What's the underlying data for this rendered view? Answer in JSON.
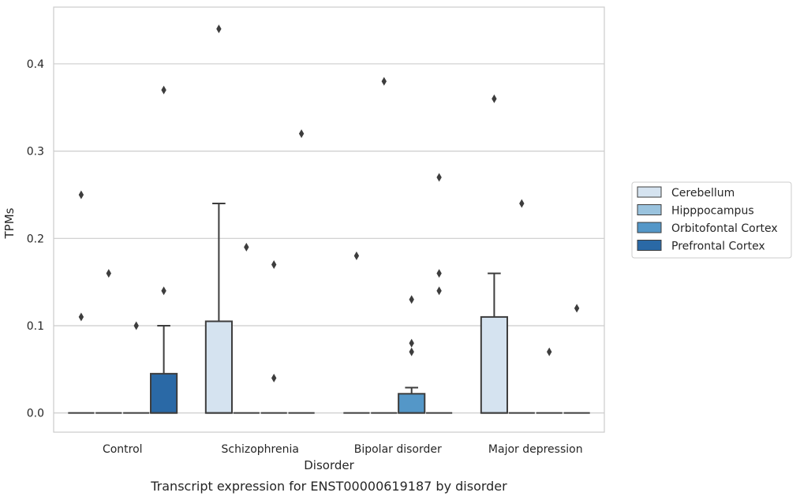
{
  "caption": "Transcript expression for ENST00000619187 by disorder",
  "chart_data": {
    "type": "box",
    "xlabel": "Disorder",
    "ylabel": "TPMs",
    "ylim": [
      -0.022,
      0.465
    ],
    "yticks": [
      0.0,
      0.1,
      0.2,
      0.3,
      0.4
    ],
    "ytick_labels": [
      "0.0",
      "0.1",
      "0.2",
      "0.3",
      "0.4"
    ],
    "grid": "horizontal",
    "legend_position": "right",
    "categories": [
      "Control",
      "Schizophrenia",
      "Bipolar disorder",
      "Major depression"
    ],
    "series": [
      {
        "name": "Cerebellum",
        "color": "#d5e3f0",
        "boxes": [
          {
            "q1": 0.0,
            "median": 0.0,
            "q3": 0.0,
            "whisker_low": 0.0,
            "whisker_high": 0.0,
            "outliers": [
              0.11,
              0.25
            ]
          },
          {
            "q1": 0.0,
            "median": 0.0,
            "q3": 0.105,
            "whisker_low": 0.0,
            "whisker_high": 0.24,
            "outliers": [
              0.44
            ]
          },
          {
            "q1": 0.0,
            "median": 0.0,
            "q3": 0.0,
            "whisker_low": 0.0,
            "whisker_high": 0.0,
            "outliers": [
              0.18
            ]
          },
          {
            "q1": 0.0,
            "median": 0.0,
            "q3": 0.11,
            "whisker_low": 0.0,
            "whisker_high": 0.16,
            "outliers": [
              0.36
            ]
          }
        ]
      },
      {
        "name": "Hipppocampus",
        "color": "#9ac3de",
        "boxes": [
          {
            "q1": 0.0,
            "median": 0.0,
            "q3": 0.0,
            "whisker_low": 0.0,
            "whisker_high": 0.0,
            "outliers": [
              0.16
            ]
          },
          {
            "q1": 0.0,
            "median": 0.0,
            "q3": 0.0,
            "whisker_low": 0.0,
            "whisker_high": 0.0,
            "outliers": [
              0.19
            ]
          },
          {
            "q1": 0.0,
            "median": 0.0,
            "q3": 0.0,
            "whisker_low": 0.0,
            "whisker_high": 0.0,
            "outliers": [
              0.38
            ]
          },
          {
            "q1": 0.0,
            "median": 0.0,
            "q3": 0.0,
            "whisker_low": 0.0,
            "whisker_high": 0.0,
            "outliers": [
              0.24
            ]
          }
        ]
      },
      {
        "name": "Orbitofontal Cortex",
        "color": "#5497c8",
        "boxes": [
          {
            "q1": 0.0,
            "median": 0.0,
            "q3": 0.0,
            "whisker_low": 0.0,
            "whisker_high": 0.0,
            "outliers": [
              0.1
            ]
          },
          {
            "q1": 0.0,
            "median": 0.0,
            "q3": 0.0,
            "whisker_low": 0.0,
            "whisker_high": 0.0,
            "outliers": [
              0.04,
              0.17
            ]
          },
          {
            "q1": 0.0,
            "median": 0.0,
            "q3": 0.022,
            "whisker_low": 0.0,
            "whisker_high": 0.029,
            "outliers": [
              0.07,
              0.08,
              0.13
            ]
          },
          {
            "q1": 0.0,
            "median": 0.0,
            "q3": 0.0,
            "whisker_low": 0.0,
            "whisker_high": 0.0,
            "outliers": [
              0.07
            ]
          }
        ]
      },
      {
        "name": "Prefrontal Cortex",
        "color": "#2a69a6",
        "boxes": [
          {
            "q1": 0.0,
            "median": 0.0,
            "q3": 0.045,
            "whisker_low": 0.0,
            "whisker_high": 0.1,
            "outliers": [
              0.14,
              0.37
            ]
          },
          {
            "q1": 0.0,
            "median": 0.0,
            "q3": 0.0,
            "whisker_low": 0.0,
            "whisker_high": 0.0,
            "outliers": [
              0.32
            ]
          },
          {
            "q1": 0.0,
            "median": 0.0,
            "q3": 0.0,
            "whisker_low": 0.0,
            "whisker_high": 0.0,
            "outliers": [
              0.14,
              0.16,
              0.27
            ]
          },
          {
            "q1": 0.0,
            "median": 0.0,
            "q3": 0.0,
            "whisker_low": 0.0,
            "whisker_high": 0.0,
            "outliers": [
              0.12
            ]
          }
        ]
      }
    ]
  }
}
